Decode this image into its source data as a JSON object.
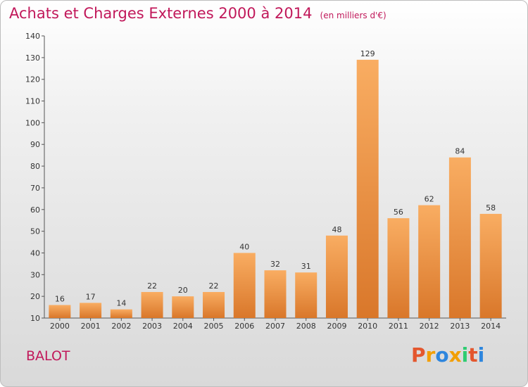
{
  "title": "Achats et Charges Externes 2000 à 2014",
  "subtitle": "(en milliers d'€)",
  "commune": "BALOT",
  "logo": {
    "text": "Proxiti",
    "colors": [
      "#e4572e",
      "#f29f05",
      "#2e86de",
      "#f29f05",
      "#2ecc71",
      "#e4572e",
      "#2e86de"
    ]
  },
  "colors": {
    "bar_light": "#f7a75a",
    "bar_dark": "#d9782a",
    "title": "#c1185a"
  },
  "chart_data": {
    "type": "bar",
    "categories": [
      "2000",
      "2001",
      "2002",
      "2003",
      "2004",
      "2005",
      "2006",
      "2007",
      "2008",
      "2009",
      "2010",
      "2011",
      "2012",
      "2013",
      "2014"
    ],
    "values": [
      16,
      17,
      14,
      22,
      20,
      22,
      40,
      32,
      31,
      48,
      129,
      56,
      62,
      84,
      58
    ],
    "title": "Achats et Charges Externes 2000 à 2014",
    "subtitle": "(en milliers d'€)",
    "xlabel": "",
    "ylabel": "",
    "ylim": [
      10,
      140
    ],
    "yticks": [
      10,
      20,
      30,
      40,
      50,
      60,
      70,
      80,
      90,
      100,
      110,
      120,
      130,
      140
    ],
    "grid": false,
    "legend": "none"
  }
}
